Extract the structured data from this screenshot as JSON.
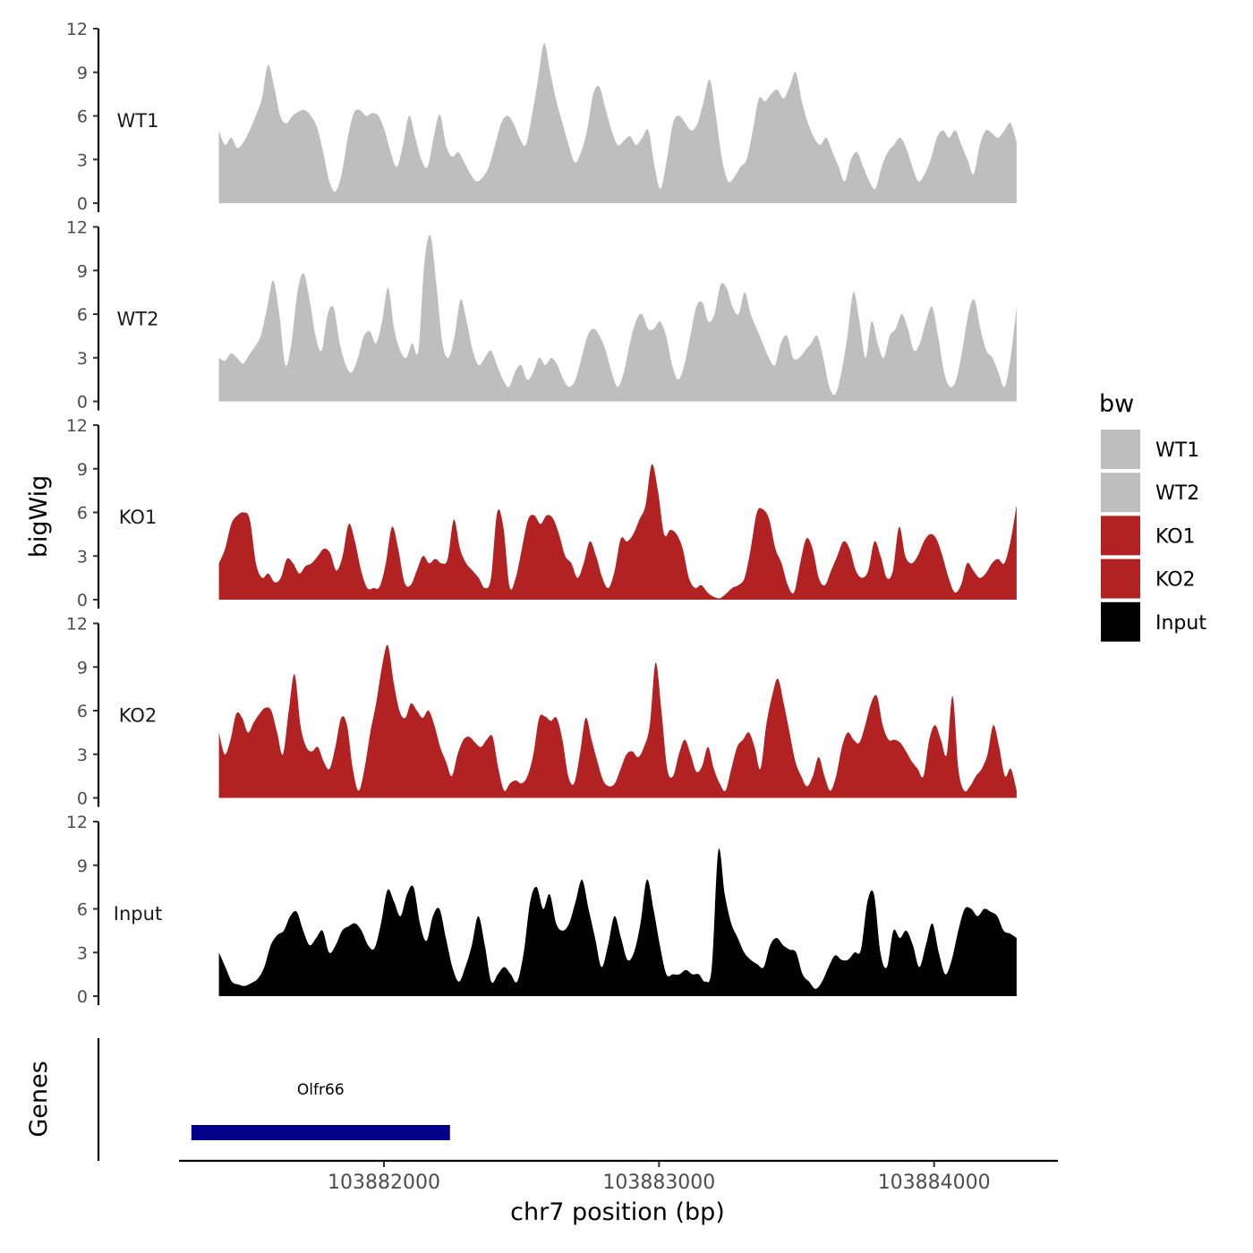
{
  "chart_data": {
    "type": "area",
    "title": "",
    "xlabel": "chr7 position (bp)",
    "ylabel": "bigWig",
    "gene_panel_label": "Genes",
    "x_range": [
      103881255,
      103884450
    ],
    "x_ticks": [
      103882000,
      103883000,
      103884000
    ],
    "x_tick_labels": [
      "103882000",
      "103883000",
      "103884000"
    ],
    "ylim": [
      0,
      12
    ],
    "y_ticks": [
      0,
      3,
      6,
      9,
      12
    ],
    "y_tick_labels": [
      "0",
      "3",
      "6",
      "9",
      "12"
    ],
    "legend": {
      "title": "bw",
      "placement": "right",
      "entries": [
        {
          "label": "WT1",
          "color": "#BEBEBE"
        },
        {
          "label": "WT2",
          "color": "#BEBEBE"
        },
        {
          "label": "KO1",
          "color": "#B22222"
        },
        {
          "label": "KO2",
          "color": "#B22222"
        },
        {
          "label": "Input",
          "color": "#000000"
        }
      ]
    },
    "series": [
      {
        "name": "WT1",
        "color": "#BEBEBE",
        "x_start": 103881400,
        "x_end": 103884300,
        "values": [
          5.0,
          4.0,
          4.5,
          3.8,
          4.2,
          5.0,
          6.0,
          7.2,
          9.5,
          8.0,
          6.0,
          5.5,
          6.0,
          6.3,
          6.4,
          6.0,
          5.2,
          3.5,
          1.5,
          0.8,
          2.0,
          4.5,
          6.2,
          6.4,
          6.0,
          6.2,
          6.0,
          5.0,
          3.5,
          2.5,
          4.0,
          6.0,
          4.5,
          3.0,
          2.5,
          4.5,
          6.1,
          4.0,
          3.2,
          3.5,
          2.8,
          2.0,
          1.5,
          1.8,
          2.5,
          4.0,
          5.5,
          6.0,
          5.5,
          4.5,
          4.0,
          6.0,
          8.5,
          11.0,
          9.0,
          7.0,
          5.5,
          4.0,
          2.8,
          3.5,
          5.0,
          7.5,
          8.0,
          6.5,
          5.0,
          4.0,
          4.3,
          4.6,
          4.0,
          4.5,
          5.0,
          2.5,
          1.0,
          3.0,
          5.5,
          6.0,
          5.5,
          5.0,
          5.5,
          7.0,
          8.5,
          6.0,
          3.0,
          1.5,
          1.8,
          2.5,
          3.0,
          5.0,
          7.2,
          7.0,
          7.5,
          7.8,
          7.2,
          8.0,
          9.0,
          7.0,
          5.5,
          4.5,
          4.0,
          4.5,
          3.5,
          2.5,
          1.5,
          3.0,
          3.5,
          2.5,
          1.5,
          1.0,
          2.5,
          3.5,
          4.0,
          4.5,
          3.8,
          2.5,
          1.5,
          2.0,
          3.0,
          4.5,
          5.0,
          4.5,
          5.0,
          4.0,
          3.0,
          2.0,
          4.0,
          5.0,
          4.8,
          4.5,
          5.0,
          5.5,
          4.2
        ]
      },
      {
        "name": "WT2",
        "color": "#BEBEBE",
        "x_start": 103881400,
        "x_end": 103884300,
        "values": [
          3.0,
          2.8,
          3.3,
          3.0,
          2.6,
          3.2,
          3.8,
          4.6,
          6.5,
          8.3,
          6.0,
          2.5,
          4.0,
          7.5,
          8.8,
          7.0,
          4.5,
          3.5,
          6.0,
          6.4,
          4.0,
          2.5,
          2.0,
          3.0,
          4.5,
          4.8,
          4.0,
          5.5,
          7.8,
          5.0,
          3.5,
          3.0,
          4.0,
          3.5,
          9.5,
          11.4,
          8.0,
          4.0,
          3.0,
          4.5,
          7.0,
          5.5,
          3.5,
          2.5,
          3.0,
          3.5,
          2.5,
          1.5,
          1.0,
          2.0,
          2.5,
          1.5,
          2.0,
          3.0,
          2.5,
          3.0,
          2.5,
          1.5,
          1.0,
          1.5,
          3.0,
          4.5,
          5.0,
          4.5,
          3.5,
          2.0,
          1.0,
          2.0,
          4.0,
          5.5,
          6.0,
          5.0,
          5.0,
          5.5,
          4.5,
          2.5,
          1.5,
          2.5,
          4.5,
          6.5,
          6.8,
          5.5,
          6.0,
          8.0,
          7.8,
          6.5,
          6.0,
          7.5,
          6.0,
          5.0,
          4.0,
          3.0,
          2.5,
          4.0,
          4.5,
          3.0,
          3.0,
          3.5,
          4.0,
          4.5,
          3.0,
          1.0,
          0.5,
          2.0,
          4.5,
          7.5,
          5.5,
          3.0,
          5.5,
          4.0,
          3.0,
          4.5,
          5.0,
          6.0,
          5.0,
          3.5,
          4.0,
          5.5,
          6.5,
          4.5,
          2.0,
          1.0,
          1.5,
          3.5,
          6.0,
          7.0,
          5.0,
          3.5,
          3.0,
          2.0,
          1.0,
          3.0,
          6.5
        ]
      },
      {
        "name": "KO1",
        "color": "#B22222",
        "x_start": 103881400,
        "x_end": 103884300,
        "values": [
          2.5,
          3.5,
          5.2,
          5.8,
          6.0,
          5.5,
          2.5,
          1.5,
          1.8,
          1.2,
          1.5,
          2.8,
          2.5,
          1.8,
          2.3,
          2.5,
          3.0,
          3.5,
          3.2,
          2.0,
          3.0,
          5.2,
          4.0,
          2.0,
          0.8,
          0.8,
          0.9,
          2.5,
          5.0,
          3.5,
          1.2,
          1.0,
          2.0,
          3.0,
          2.5,
          2.8,
          2.5,
          2.8,
          5.5,
          3.5,
          2.5,
          2.0,
          1.5,
          0.8,
          1.5,
          6.0,
          5.0,
          0.9,
          1.5,
          3.5,
          5.5,
          5.8,
          5.2,
          5.8,
          5.6,
          4.5,
          3.0,
          2.5,
          1.5,
          2.5,
          4.0,
          3.0,
          1.5,
          0.8,
          2.0,
          4.2,
          4.0,
          4.5,
          5.5,
          6.5,
          9.3,
          7.5,
          4.5,
          4.8,
          4.5,
          3.5,
          1.5,
          0.8,
          1.0,
          0.5,
          0.2,
          0.1,
          0.4,
          0.8,
          1.0,
          1.5,
          3.5,
          6.0,
          6.2,
          5.5,
          3.5,
          2.5,
          1.0,
          0.5,
          2.5,
          4.2,
          3.5,
          1.5,
          1.0,
          2.0,
          3.0,
          4.0,
          3.5,
          2.0,
          1.5,
          2.0,
          4.0,
          3.0,
          1.5,
          2.0,
          5.0,
          3.0,
          2.5,
          3.0,
          4.0,
          4.5,
          4.2,
          3.0,
          1.5,
          0.5,
          1.0,
          2.5,
          2.0,
          1.5,
          1.8,
          2.5,
          2.8,
          2.5,
          4.0,
          6.5
        ]
      },
      {
        "name": "KO2",
        "color": "#B22222",
        "x_start": 103881400,
        "x_end": 103884300,
        "values": [
          4.5,
          3.0,
          4.0,
          5.8,
          5.5,
          4.5,
          5.2,
          5.8,
          6.2,
          6.0,
          4.5,
          3.0,
          6.0,
          8.5,
          5.0,
          3.5,
          3.2,
          3.5,
          2.5,
          2.0,
          3.5,
          5.5,
          5.0,
          2.0,
          0.5,
          2.0,
          4.5,
          6.5,
          9.0,
          10.5,
          8.0,
          6.0,
          5.5,
          6.5,
          6.0,
          5.5,
          6.0,
          5.0,
          3.5,
          2.5,
          1.5,
          3.0,
          4.0,
          4.2,
          3.8,
          3.5,
          4.0,
          4.2,
          2.0,
          0.5,
          1.0,
          1.2,
          1.0,
          1.5,
          3.0,
          5.5,
          5.6,
          5.3,
          5.5,
          4.0,
          1.5,
          1.0,
          3.0,
          5.5,
          4.0,
          2.5,
          1.2,
          0.8,
          1.0,
          2.0,
          3.0,
          3.2,
          2.8,
          3.5,
          5.0,
          9.3,
          6.0,
          2.0,
          1.5,
          3.0,
          4.0,
          3.0,
          1.8,
          2.2,
          3.5,
          2.0,
          1.0,
          0.5,
          2.0,
          3.5,
          4.0,
          4.5,
          3.5,
          2.0,
          5.0,
          7.0,
          8.2,
          6.5,
          4.5,
          2.5,
          1.5,
          0.8,
          1.5,
          2.8,
          1.5,
          0.5,
          1.5,
          3.5,
          4.5,
          4.0,
          3.8,
          5.0,
          6.5,
          7.0,
          5.0,
          4.0,
          4.0,
          3.8,
          3.2,
          2.5,
          2.0,
          1.5,
          4.0,
          5.0,
          4.0,
          3.0,
          7.0,
          2.0,
          0.5,
          0.8,
          1.5,
          2.0,
          3.0,
          5.0,
          3.5,
          1.5,
          2.0,
          0.5
        ]
      },
      {
        "name": "Input",
        "color": "#000000",
        "x_start": 103881400,
        "x_end": 103884300,
        "values": [
          3.0,
          2.0,
          1.0,
          0.8,
          0.7,
          0.9,
          1.2,
          2.0,
          3.5,
          4.2,
          4.5,
          5.5,
          5.8,
          4.5,
          3.5,
          4.0,
          4.5,
          3.0,
          3.5,
          4.5,
          4.8,
          5.0,
          4.5,
          3.5,
          3.3,
          5.0,
          7.3,
          6.5,
          5.5,
          7.0,
          7.5,
          5.0,
          3.8,
          5.5,
          6.0,
          4.0,
          2.0,
          1.0,
          2.0,
          3.5,
          5.5,
          3.5,
          1.0,
          1.5,
          2.0,
          1.5,
          1.0,
          3.0,
          6.5,
          7.5,
          6.0,
          7.0,
          5.0,
          4.5,
          5.0,
          6.5,
          8.0,
          6.0,
          4.0,
          2.0,
          3.5,
          5.5,
          4.0,
          2.5,
          3.0,
          5.0,
          8.0,
          6.0,
          3.5,
          1.5,
          1.5,
          1.5,
          1.8,
          1.5,
          1.5,
          1.0,
          2.0,
          10.0,
          7.0,
          5.0,
          4.0,
          3.0,
          2.5,
          2.2,
          2.0,
          3.5,
          4.0,
          3.5,
          3.2,
          3.0,
          1.5,
          1.0,
          0.5,
          1.0,
          2.0,
          2.8,
          2.5,
          2.5,
          3.0,
          3.2,
          6.5,
          7.0,
          3.0,
          2.0,
          4.5,
          4.0,
          4.5,
          3.5,
          2.0,
          3.5,
          5.0,
          3.0,
          1.5,
          2.5,
          4.5,
          6.0,
          6.0,
          5.5,
          6.0,
          5.8,
          5.5,
          4.5,
          4.3,
          4.0
        ]
      }
    ],
    "genes": [
      {
        "name": "Olfr66",
        "start": 103881300,
        "end": 103882240,
        "color": "#00008B"
      }
    ]
  }
}
